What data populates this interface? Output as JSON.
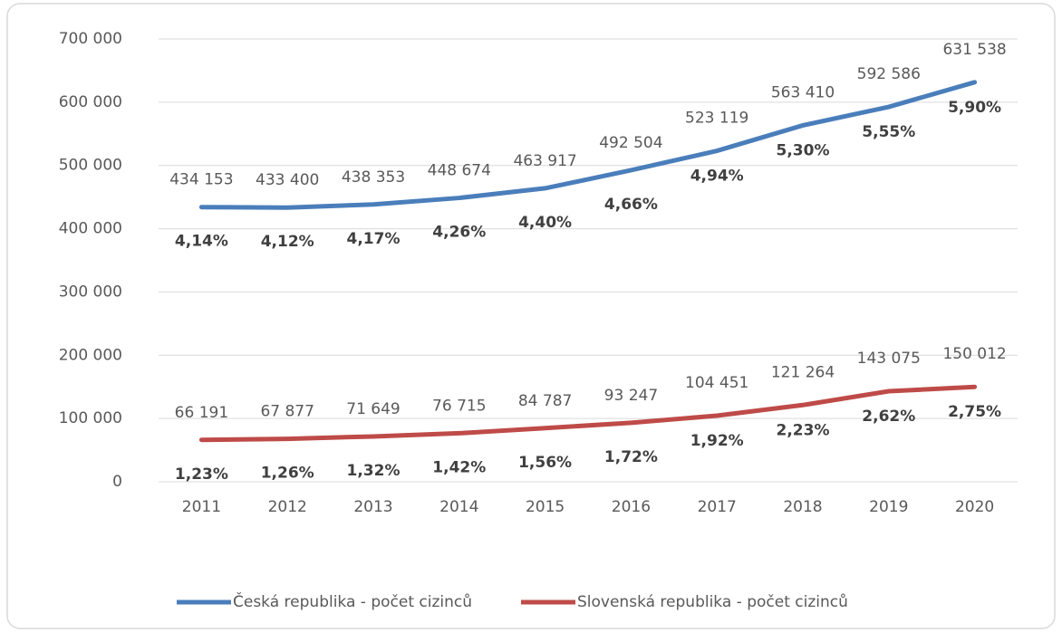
{
  "chart_data": {
    "type": "line",
    "categories": [
      "2011",
      "2012",
      "2013",
      "2014",
      "2015",
      "2016",
      "2017",
      "2018",
      "2019",
      "2020"
    ],
    "series": [
      {
        "name": "Česká republika - počet cizinců",
        "color": "#4a7ebb",
        "values": [
          434153,
          433400,
          438353,
          448674,
          463917,
          492504,
          523119,
          563410,
          592586,
          631538
        ],
        "value_labels": [
          "434 153",
          "433 400",
          "438 353",
          "448 674",
          "463 917",
          "492 504",
          "523 119",
          "563 410",
          "592 586",
          "631 538"
        ],
        "share_labels": [
          "4,14%",
          "4,12%",
          "4,17%",
          "4,26%",
          "4,40%",
          "4,66%",
          "4,94%",
          "5,30%",
          "5,55%",
          "5,90%"
        ]
      },
      {
        "name": "Slovenská republika - počet cizinců",
        "color": "#be4b48",
        "values": [
          66191,
          67877,
          71649,
          76715,
          84787,
          93247,
          104451,
          121264,
          143075,
          150012
        ],
        "value_labels": [
          "66 191",
          "67 877",
          "71 649",
          "76 715",
          "84 787",
          "93 247",
          "104 451",
          "121 264",
          "143 075",
          "150 012"
        ],
        "share_labels": [
          "1,23%",
          "1,26%",
          "1,32%",
          "1,42%",
          "1,56%",
          "1,72%",
          "1,92%",
          "2,23%",
          "2,62%",
          "2,75%"
        ]
      }
    ],
    "ylim": [
      0,
      700000
    ],
    "yticks": [
      0,
      {
        "value": 100000,
        "label": "100 000"
      },
      {
        "value": 200000,
        "label": "200 000"
      },
      {
        "value": 300000,
        "label": "300 000"
      },
      {
        "value": 400000,
        "label": "400 000"
      },
      {
        "value": 500000,
        "label": "500 000"
      },
      {
        "value": 600000,
        "label": "600 000"
      },
      {
        "value": 700000,
        "label": "700 000"
      }
    ],
    "grid": true,
    "legend": "bottom"
  }
}
